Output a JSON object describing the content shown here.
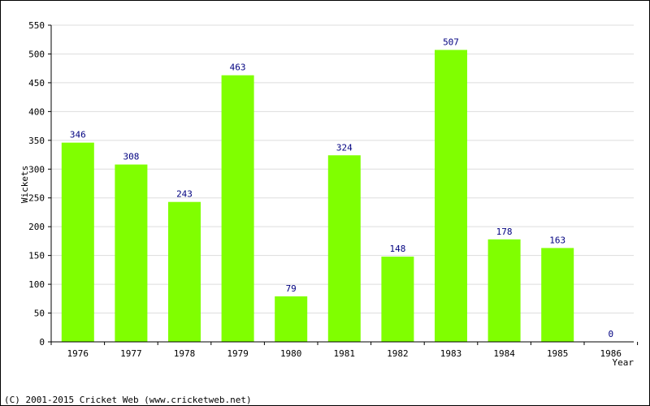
{
  "chart_data": {
    "type": "bar",
    "categories": [
      "1976",
      "1977",
      "1978",
      "1979",
      "1980",
      "1981",
      "1982",
      "1983",
      "1984",
      "1985",
      "1986"
    ],
    "values": [
      346,
      308,
      243,
      463,
      79,
      324,
      148,
      507,
      178,
      163,
      0
    ],
    "xlabel": "Year",
    "ylabel": "Wickets",
    "ylim": [
      0,
      550
    ],
    "yticks": [
      0,
      50,
      100,
      150,
      200,
      250,
      300,
      350,
      400,
      450,
      500,
      550
    ],
    "grid": true,
    "bar_color": "#80ff00",
    "label_color": "#000080",
    "grid_color": "#dddddd"
  },
  "footer": "(C) 2001-2015 Cricket Web (www.cricketweb.net)"
}
